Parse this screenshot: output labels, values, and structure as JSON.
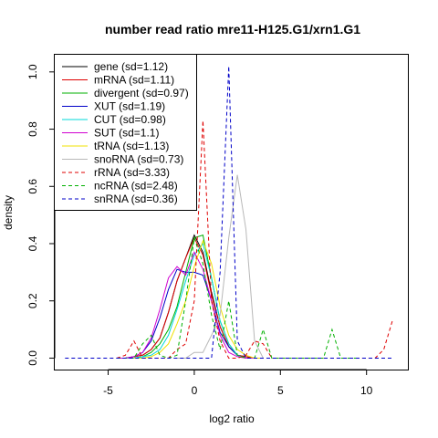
{
  "chart_data": {
    "type": "line",
    "title": "number read ratio mre11-H125.G1/xrn1.G1",
    "xlabel": "log2 ratio",
    "ylabel": "density",
    "xlim": [
      -8.1,
      12.4
    ],
    "ylim": [
      -0.04,
      1.06
    ],
    "xticks": [
      -5,
      0,
      5,
      10
    ],
    "xtick_labels": [
      "-5",
      "0",
      "5",
      "10"
    ],
    "yticks": [
      0.0,
      0.2,
      0.4,
      0.6,
      0.8,
      1.0
    ],
    "ytick_labels": [
      "0.0",
      "0.2",
      "0.4",
      "0.6",
      "0.8",
      "1.0"
    ],
    "grid": false,
    "legend_position": "top-left",
    "series": [
      {
        "name": "gene (sd=1.12)",
        "color": "#000000",
        "dash": "solid",
        "x": [
          -4.5,
          -4,
          -3.5,
          -3,
          -2.5,
          -2,
          -1.5,
          -1,
          -0.5,
          0,
          0.5,
          1,
          1.5,
          2,
          2.5,
          3,
          3.5,
          4
        ],
        "y": [
          0,
          0,
          0.005,
          0.01,
          0.03,
          0.07,
          0.16,
          0.27,
          0.35,
          0.43,
          0.37,
          0.23,
          0.11,
          0.04,
          0.01,
          0.005,
          0,
          0
        ]
      },
      {
        "name": "mRNA (sd=1.11)",
        "color": "#df0000",
        "dash": "solid",
        "x": [
          -4.5,
          -4,
          -3.5,
          -3,
          -2.5,
          -2,
          -1.5,
          -1,
          -0.5,
          0,
          0.5,
          1,
          1.5,
          2,
          2.5,
          3,
          3.5,
          4
        ],
        "y": [
          0,
          0,
          0.005,
          0.01,
          0.03,
          0.07,
          0.16,
          0.27,
          0.35,
          0.42,
          0.36,
          0.22,
          0.11,
          0.04,
          0.01,
          0.005,
          0,
          0
        ]
      },
      {
        "name": "divergent (sd=0.97)",
        "color": "#00b000",
        "dash": "solid",
        "x": [
          -4,
          -3.5,
          -3,
          -2.5,
          -2,
          -1.5,
          -1,
          -0.5,
          0,
          0.5,
          1,
          1.5,
          2,
          2.5,
          3,
          3.5
        ],
        "y": [
          0,
          0,
          0.005,
          0.02,
          0.05,
          0.1,
          0.18,
          0.3,
          0.42,
          0.43,
          0.28,
          0.13,
          0.05,
          0.01,
          0,
          0
        ]
      },
      {
        "name": "XUT (sd=1.19)",
        "color": "#0000c8",
        "dash": "solid",
        "x": [
          -4.5,
          -4,
          -3.5,
          -3,
          -2.5,
          -2,
          -1.5,
          -1,
          -0.5,
          0,
          0.5,
          1,
          1.5,
          2,
          2.5,
          3,
          3.5
        ],
        "y": [
          0,
          0,
          0.005,
          0.02,
          0.06,
          0.14,
          0.24,
          0.31,
          0.3,
          0.3,
          0.29,
          0.2,
          0.09,
          0.04,
          0.01,
          0,
          0
        ]
      },
      {
        "name": "CUT (sd=0.98)",
        "color": "#00d8d8",
        "dash": "solid",
        "x": [
          -4,
          -3.5,
          -3,
          -2.5,
          -2,
          -1.5,
          -1,
          -0.5,
          0,
          0.5,
          1,
          1.5,
          2,
          2.5,
          3,
          3.5
        ],
        "y": [
          0,
          0,
          0.005,
          0.01,
          0.03,
          0.08,
          0.17,
          0.27,
          0.36,
          0.4,
          0.28,
          0.13,
          0.05,
          0.01,
          0,
          0
        ]
      },
      {
        "name": "SUT (sd=1.1)",
        "color": "#d000d0",
        "dash": "solid",
        "x": [
          -4.5,
          -4,
          -3.5,
          -3,
          -2.5,
          -2,
          -1.5,
          -1,
          -0.5,
          0,
          0.5,
          1,
          1.5,
          2,
          2.5,
          3,
          3.5
        ],
        "y": [
          0,
          0,
          0.005,
          0.02,
          0.07,
          0.17,
          0.28,
          0.32,
          0.29,
          0.37,
          0.31,
          0.2,
          0.08,
          0.02,
          0.005,
          0,
          0
        ]
      },
      {
        "name": "tRNA (sd=1.13)",
        "color": "#f0e000",
        "dash": "solid",
        "x": [
          -3.5,
          -3,
          -2.5,
          -2,
          -1.5,
          -1,
          -0.5,
          0,
          0.5,
          1,
          1.5,
          2,
          2.5,
          3,
          3.5,
          4
        ],
        "y": [
          0,
          0,
          0.005,
          0.02,
          0.05,
          0.12,
          0.2,
          0.32,
          0.41,
          0.33,
          0.18,
          0.08,
          0.03,
          0.01,
          0,
          0
        ]
      },
      {
        "name": "snoRNA (sd=0.73)",
        "color": "#b8b8b8",
        "dash": "solid",
        "x": [
          -1,
          -0.5,
          0,
          0.5,
          1,
          1.5,
          2,
          2.5,
          3,
          3.5,
          4
        ],
        "y": [
          0,
          0,
          0.02,
          0.02,
          0.08,
          0.15,
          0.42,
          0.64,
          0.45,
          0.06,
          0
        ]
      },
      {
        "name": "rRNA (sd=3.33)",
        "color": "#df0000",
        "dash": "dashed",
        "x": [
          -4.5,
          -4,
          -3.5,
          -3,
          -2.5,
          -2,
          -1.5,
          -1,
          -0.5,
          0,
          0.5,
          1,
          1.5,
          2,
          2.5,
          3,
          3.5,
          4,
          4.5,
          5,
          6,
          7,
          8,
          9,
          10,
          10.5,
          11,
          11.5
        ],
        "y": [
          0,
          0.01,
          0.06,
          0,
          0,
          0,
          0,
          0.03,
          0.05,
          0.2,
          0.83,
          0.2,
          0.06,
          0,
          0,
          0.01,
          0.06,
          0.05,
          0,
          0,
          0,
          0,
          0,
          0,
          0,
          0,
          0.03,
          0.13
        ]
      },
      {
        "name": "ncRNA (sd=2.48)",
        "color": "#00b000",
        "dash": "dashed",
        "x": [
          -4.5,
          -4,
          -3.5,
          -3,
          -2.5,
          -2,
          -1.5,
          -1,
          -0.5,
          0,
          0.5,
          1,
          1.5,
          2,
          2.5,
          3,
          3.5,
          4,
          4.5,
          5,
          5.5,
          6,
          7,
          7.5,
          8,
          8.5,
          9,
          9.5
        ],
        "y": [
          0,
          0,
          0,
          0.05,
          0.08,
          0.01,
          0,
          0.01,
          0.2,
          0.42,
          0.33,
          0.15,
          0.03,
          0.2,
          0.01,
          0,
          0,
          0.1,
          0,
          0,
          0,
          0,
          0,
          0,
          0.1,
          0,
          0,
          0
        ]
      },
      {
        "name": "snRNA (sd=0.36)",
        "color": "#0000c8",
        "dash": "dashed",
        "x": [
          -7.5,
          -6,
          -5,
          -4,
          -3,
          -2,
          -1,
          0,
          0.5,
          1,
          1.5,
          2,
          2.5,
          3,
          4,
          5,
          6,
          7,
          8,
          9,
          10,
          11.5
        ],
        "y": [
          0,
          0,
          0,
          0,
          0,
          0,
          0,
          0,
          0,
          0,
          0.3,
          1.02,
          0.06,
          0,
          0,
          0,
          0,
          0,
          0,
          0,
          0,
          0
        ]
      }
    ]
  }
}
